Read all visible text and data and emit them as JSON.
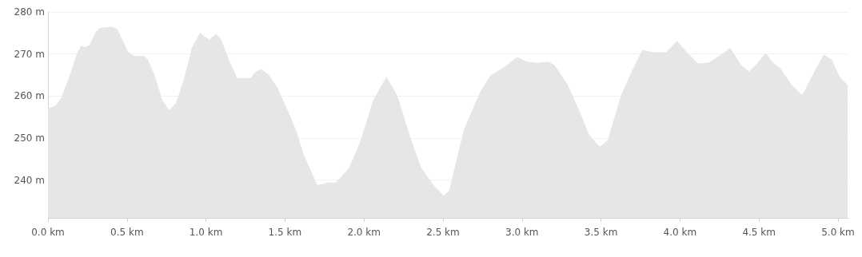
{
  "chart_data": {
    "type": "area",
    "x": [
      0.0,
      0.051,
      0.084,
      0.135,
      0.186,
      0.211,
      0.236,
      0.262,
      0.304,
      0.329,
      0.405,
      0.439,
      0.506,
      0.54,
      0.607,
      0.633,
      0.675,
      0.725,
      0.768,
      0.81,
      0.86,
      0.911,
      0.962,
      1.021,
      1.063,
      1.097,
      1.147,
      1.198,
      1.282,
      1.316,
      1.35,
      1.4,
      1.451,
      1.518,
      1.569,
      1.619,
      1.704,
      1.771,
      1.822,
      1.906,
      1.974,
      2.058,
      2.142,
      2.21,
      2.294,
      2.362,
      2.446,
      2.505,
      2.539,
      2.632,
      2.733,
      2.8,
      2.885,
      2.969,
      3.028,
      3.096,
      3.163,
      3.205,
      3.289,
      3.357,
      3.425,
      3.492,
      3.543,
      3.627,
      3.694,
      3.762,
      3.829,
      3.913,
      3.981,
      4.049,
      4.116,
      4.184,
      4.251,
      4.318,
      4.386,
      4.437,
      4.487,
      4.541,
      4.588,
      4.639,
      4.706,
      4.774,
      4.842,
      4.909,
      4.96,
      5.01,
      5.061
    ],
    "series": [
      {
        "color": "#e6e6e6",
        "values": [
          257.0,
          257.8,
          259.6,
          264.6,
          270.3,
          272.0,
          271.6,
          272.1,
          275.3,
          276.2,
          276.5,
          275.9,
          270.6,
          269.6,
          269.5,
          268.7,
          264.9,
          258.9,
          256.7,
          258.3,
          264.0,
          271.5,
          275.0,
          273.4,
          274.8,
          273.4,
          268.4,
          264.3,
          264.3,
          265.8,
          266.4,
          264.9,
          262.1,
          256.5,
          252.0,
          246.0,
          238.8,
          239.4,
          239.4,
          242.9,
          248.9,
          258.9,
          264.6,
          260.2,
          250.1,
          242.9,
          238.5,
          236.3,
          237.5,
          252.0,
          260.8,
          264.9,
          266.8,
          269.3,
          268.2,
          267.9,
          268.2,
          267.4,
          262.7,
          257.0,
          250.8,
          247.9,
          249.5,
          260.2,
          265.8,
          271.0,
          270.4,
          270.4,
          273.1,
          270.2,
          267.7,
          268.0,
          269.6,
          271.5,
          267.4,
          265.8,
          267.7,
          270.2,
          268.0,
          266.4,
          262.7,
          260.2,
          265.2,
          269.9,
          268.7,
          264.6,
          262.6
        ]
      }
    ],
    "xlim": [
      0,
      5.066
    ],
    "xticks": [
      {
        "value": 0,
        "label": "0.0 km"
      },
      {
        "value": 0.5,
        "label": "0.5 km"
      },
      {
        "value": 1,
        "label": "1.0 km"
      },
      {
        "value": 1.5,
        "label": "1.5 km"
      },
      {
        "value": 2,
        "label": "2.0 km"
      },
      {
        "value": 2.5,
        "label": "2.5 km"
      },
      {
        "value": 3,
        "label": "3.0 km"
      },
      {
        "value": 3.5,
        "label": "3.5 km"
      },
      {
        "value": 4,
        "label": "4.0 km"
      },
      {
        "value": 4.5,
        "label": "4.5 km"
      },
      {
        "value": 5,
        "label": "5.0 km"
      }
    ],
    "ylim": [
      231,
      280
    ],
    "yticks": [
      {
        "value": 240,
        "label": "240 m"
      },
      {
        "value": 250,
        "label": "250 m"
      },
      {
        "value": 260,
        "label": "260 m"
      },
      {
        "value": 270,
        "label": "270 m"
      },
      {
        "value": 280,
        "label": "280 m"
      }
    ],
    "grid": "y",
    "marker": "none"
  }
}
